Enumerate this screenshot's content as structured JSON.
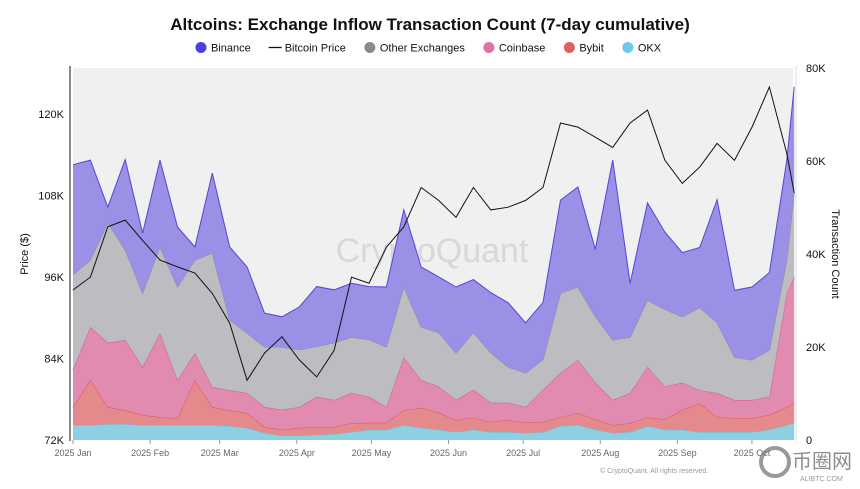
{
  "chart_data": {
    "type": "area",
    "title": "Altcoins: Exchange Inflow Transaction Count (7-day cumulative)",
    "watermark": "CryptoQuant",
    "copyright": "© CryptoQuant. All rights reserved.",
    "overlay_logo": {
      "text": "币圈网",
      "subtext": "ALIBTC.COM"
    },
    "legend_position": "top",
    "legend": [
      {
        "name": "Binance",
        "color": "#4b3fe0",
        "marker": "dot"
      },
      {
        "name": "Bitcoin Price",
        "color": "#111111",
        "marker": "line"
      },
      {
        "name": "Other Exchanges",
        "color": "#8a8a90",
        "marker": "dot"
      },
      {
        "name": "Coinbase",
        "color": "#e070a5",
        "marker": "dot"
      },
      {
        "name": "Bybit",
        "color": "#e06060",
        "marker": "dot"
      },
      {
        "name": "OKX",
        "color": "#6dc9e8",
        "marker": "dot"
      }
    ],
    "x_tick_labels": [
      "2025 Jan",
      "2025 Feb",
      "2025 Mar",
      "2025 Apr",
      "2025 May",
      "2025 Jun",
      "2025 Jul",
      "2025 Aug",
      "2025 Sep",
      "2025 Oct"
    ],
    "x_tick_dates": [
      "2025-01-01",
      "2025-02-01",
      "2025-03-01",
      "2025-04-01",
      "2025-05-01",
      "2025-06-01",
      "2025-07-01",
      "2025-08-01",
      "2025-09-01",
      "2025-10-01"
    ],
    "y_left": {
      "label": "Price ($)",
      "ylim": [
        72000,
        126800
      ],
      "ticks": [
        72000,
        84000,
        96000,
        108000,
        120000
      ],
      "tick_labels": [
        "72K",
        "84K",
        "96K",
        "108K",
        "120K"
      ]
    },
    "y_right": {
      "label": "Transaction Count",
      "ylim": [
        0,
        80000
      ],
      "ticks": [
        0,
        20000,
        40000,
        60000,
        80000
      ],
      "tick_labels": [
        "0",
        "20K",
        "40K",
        "60K",
        "80K"
      ]
    },
    "grid": false,
    "stacked": true,
    "x": [
      "2025-01-01",
      "2025-01-08",
      "2025-01-15",
      "2025-01-22",
      "2025-01-29",
      "2025-02-05",
      "2025-02-12",
      "2025-02-19",
      "2025-02-26",
      "2025-03-05",
      "2025-03-12",
      "2025-03-19",
      "2025-03-26",
      "2025-04-02",
      "2025-04-09",
      "2025-04-16",
      "2025-04-23",
      "2025-04-30",
      "2025-05-07",
      "2025-05-14",
      "2025-05-21",
      "2025-05-28",
      "2025-06-04",
      "2025-06-11",
      "2025-06-18",
      "2025-06-25",
      "2025-07-02",
      "2025-07-09",
      "2025-07-16",
      "2025-07-23",
      "2025-07-30",
      "2025-08-06",
      "2025-08-13",
      "2025-08-20",
      "2025-08-27",
      "2025-09-03",
      "2025-09-10",
      "2025-09-17",
      "2025-09-24",
      "2025-10-01",
      "2025-10-08",
      "2025-10-15",
      "2025-10-18"
    ],
    "series": [
      {
        "name": "OKX",
        "axis": "right",
        "fill": "#8dcfe3",
        "stroke": "#6bc3e0",
        "values": [
          3200,
          3200,
          3400,
          3400,
          3200,
          3200,
          3200,
          3200,
          3200,
          3000,
          2600,
          1500,
          900,
          900,
          1100,
          1300,
          1700,
          2200,
          2200,
          3200,
          2600,
          2200,
          1700,
          2200,
          1700,
          1700,
          1500,
          1700,
          3000,
          3200,
          2200,
          1500,
          1700,
          3000,
          2200,
          2200,
          1700,
          1700,
          1700,
          1700,
          2200,
          3200,
          3700
        ]
      },
      {
        "name": "Bybit",
        "axis": "right",
        "fill": "#e58a8c",
        "stroke": "#e05555",
        "values": [
          3900,
          9700,
          3700,
          3000,
          2200,
          1700,
          1500,
          9700,
          3900,
          3400,
          3200,
          1300,
          1300,
          1700,
          1700,
          1500,
          1900,
          1500,
          1500,
          3200,
          4300,
          3700,
          2600,
          2600,
          2200,
          2600,
          2200,
          2200,
          1900,
          2600,
          2200,
          1700,
          1900,
          1900,
          2200,
          4300,
          6200,
          3200,
          3000,
          3000,
          3200,
          3900,
          4300
        ]
      },
      {
        "name": "Coinbase",
        "axis": "right",
        "fill": "#e28bb0",
        "stroke": "#d9578d",
        "values": [
          8000,
          11400,
          13800,
          15100,
          10300,
          18100,
          8200,
          5800,
          4300,
          4300,
          4300,
          4300,
          4300,
          4500,
          6500,
          5800,
          6500,
          5600,
          3400,
          11400,
          6000,
          5600,
          4300,
          6000,
          4100,
          3700,
          3400,
          6900,
          9500,
          11400,
          8000,
          5400,
          6500,
          10800,
          7100,
          5800,
          2800,
          5200,
          3900,
          3900,
          3900,
          24500,
          27100
        ]
      },
      {
        "name": "Other Exchanges",
        "axis": "right",
        "fill": "#bdbcc0",
        "stroke": "#8e8d93",
        "values": [
          20400,
          14400,
          25800,
          19400,
          15900,
          18500,
          20000,
          20000,
          28800,
          15100,
          12900,
          12900,
          13500,
          12300,
          10800,
          12300,
          12000,
          12300,
          12900,
          15100,
          11400,
          11600,
          10100,
          12300,
          10800,
          7700,
          7300,
          6500,
          17200,
          15700,
          14200,
          12900,
          12000,
          14400,
          16600,
          14200,
          17800,
          15100,
          9200,
          8600,
          10100,
          7100,
          18100
        ]
      },
      {
        "name": "Binance",
        "axis": "right",
        "fill": "#9a91e6",
        "stroke": "#5444d8",
        "values": [
          23700,
          21500,
          3400,
          19400,
          12900,
          18700,
          12900,
          2800,
          17200,
          15700,
          14200,
          7300,
          6500,
          9200,
          12900,
          11400,
          11600,
          11400,
          12900,
          16600,
          12900,
          12000,
          14200,
          11400,
          12900,
          13800,
          10800,
          12300,
          20000,
          21500,
          14400,
          38700,
          11600,
          20900,
          16600,
          13800,
          12900,
          26500,
          14400,
          15700,
          16600,
          21500,
          22800
        ]
      }
    ],
    "price_series": {
      "name": "Bitcoin Price",
      "axis": "left",
      "color": "#111111",
      "values": [
        94100,
        96000,
        103400,
        104400,
        101400,
        98500,
        97500,
        96600,
        93600,
        89200,
        80800,
        84800,
        87200,
        83800,
        81300,
        85200,
        96000,
        95100,
        100400,
        103400,
        109200,
        107300,
        104800,
        109200,
        105900,
        106300,
        107300,
        109200,
        118700,
        118100,
        116600,
        115100,
        118700,
        120600,
        113200,
        109800,
        112200,
        115700,
        113200,
        118100,
        124000,
        114200,
        108400
      ]
    }
  }
}
